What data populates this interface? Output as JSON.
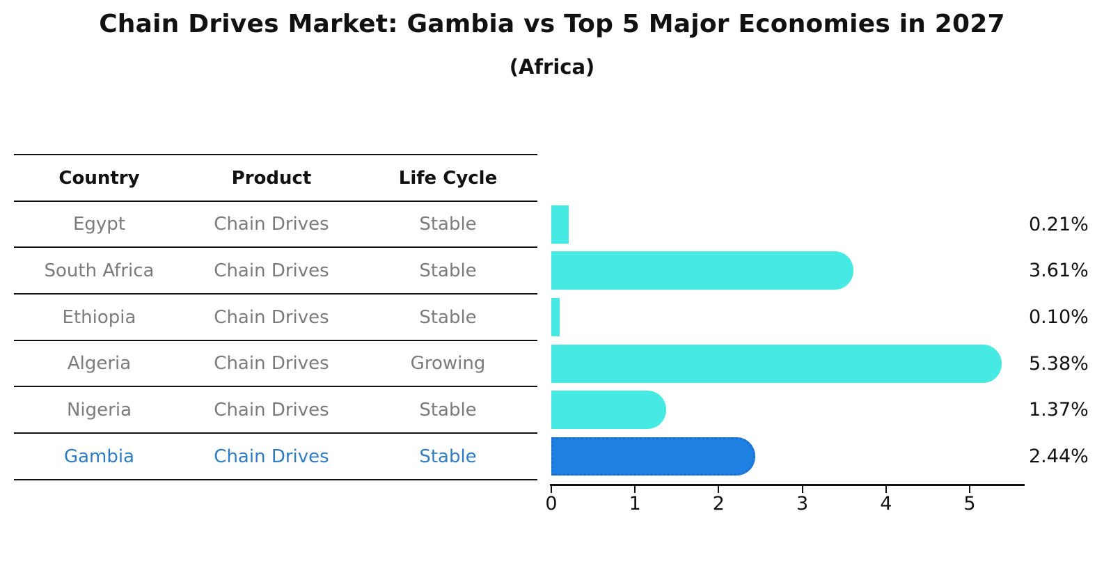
{
  "title": "Chain Drives Market: Gambia vs Top 5 Major Economies in 2027",
  "subtitle": "(Africa)",
  "table": {
    "headers": [
      "Country",
      "Product",
      "Life Cycle"
    ],
    "rows": [
      {
        "country": "Egypt",
        "product": "Chain Drives",
        "life_cycle": "Stable",
        "highlight": false
      },
      {
        "country": "South Africa",
        "product": "Chain Drives",
        "life_cycle": "Stable",
        "highlight": false
      },
      {
        "country": "Ethiopia",
        "product": "Chain Drives",
        "life_cycle": "Stable",
        "highlight": false
      },
      {
        "country": "Algeria",
        "product": "Chain Drives",
        "life_cycle": "Growing",
        "highlight": false
      },
      {
        "country": "Nigeria",
        "product": "Chain Drives",
        "life_cycle": "Stable",
        "highlight": false
      },
      {
        "country": "Gambia",
        "product": "Chain Drives",
        "life_cycle": "Stable",
        "highlight": true
      }
    ]
  },
  "chart_data": {
    "type": "bar",
    "orientation": "horizontal",
    "title": "Chain Drives Market: Gambia vs Top 5 Major Economies in 2027",
    "subtitle": "(Africa)",
    "categories": [
      "Egypt",
      "South Africa",
      "Ethiopia",
      "Algeria",
      "Nigeria",
      "Gambia"
    ],
    "values": [
      0.21,
      3.61,
      0.1,
      5.38,
      1.37,
      2.44
    ],
    "value_labels": [
      "0.21%",
      "3.61%",
      "0.10%",
      "5.38%",
      "1.37%",
      "2.44%"
    ],
    "x_ticks": [
      "0",
      "1",
      "2",
      "3",
      "4",
      "5"
    ],
    "xlim": [
      0,
      5.65
    ],
    "grid": false,
    "legend": false,
    "highlight_index": 5,
    "colors": {
      "bar": "#47e9e3",
      "highlight_bar": "#1f80e3",
      "highlight_border": "#1a6fd0",
      "highlight_text": "#2e7cc6",
      "row_text": "#7b7b7b",
      "header_text": "#111111",
      "axis": "#111111"
    }
  }
}
